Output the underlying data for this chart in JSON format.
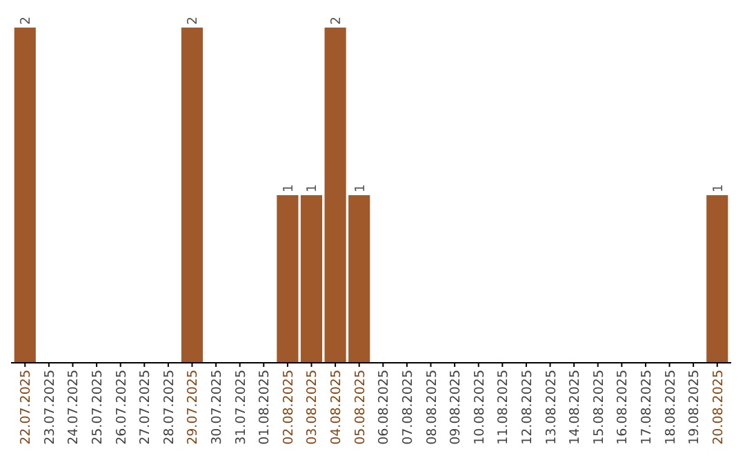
{
  "chart_data": {
    "type": "bar",
    "categories": [
      "22.07.2025",
      "23.07.2025",
      "24.07.2025",
      "25.07.2025",
      "26.07.2025",
      "27.07.2025",
      "28.07.2025",
      "29.07.2025",
      "30.07.2025",
      "31.07.2025",
      "01.08.2025",
      "02.08.2025",
      "03.08.2025",
      "04.08.2025",
      "05.08.2025",
      "06.08.2025",
      "07.08.2025",
      "08.08.2025",
      "09.08.2025",
      "10.08.2025",
      "11.08.2025",
      "12.08.2025",
      "13.08.2025",
      "14.08.2025",
      "15.08.2025",
      "16.08.2025",
      "17.08.2025",
      "18.08.2025",
      "19.08.2025",
      "20.08.2025"
    ],
    "values": [
      2,
      0,
      0,
      0,
      0,
      0,
      0,
      2,
      0,
      0,
      0,
      1,
      1,
      2,
      1,
      0,
      0,
      0,
      0,
      0,
      0,
      0,
      0,
      0,
      0,
      0,
      0,
      0,
      0,
      1
    ],
    "value_labels": [
      "2",
      null,
      null,
      null,
      null,
      null,
      null,
      "2",
      null,
      null,
      null,
      "1",
      "1",
      "2",
      "1",
      null,
      null,
      null,
      null,
      null,
      null,
      null,
      null,
      null,
      null,
      null,
      null,
      null,
      null,
      "1"
    ],
    "color": "#a0592b"
  }
}
